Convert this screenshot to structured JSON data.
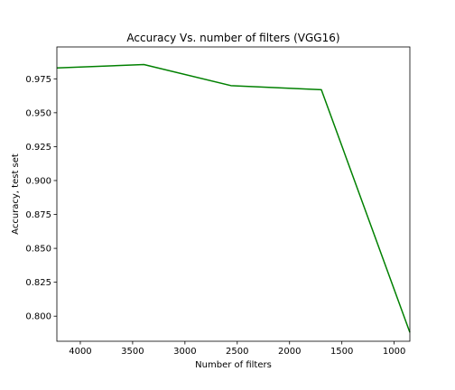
{
  "chart_data": {
    "type": "line",
    "title": "Accuracy Vs. number of filters (VGG16)",
    "xlabel": "Number of filters",
    "ylabel": "Accuracy, test set",
    "xlim": [
      4224,
      850
    ],
    "ylim": [
      0.7815,
      0.9985
    ],
    "x_inverted": true,
    "grid": false,
    "x_ticks": [
      4000,
      3500,
      3000,
      2500,
      2000,
      1500,
      1000
    ],
    "y_ticks": [
      0.8,
      0.825,
      0.85,
      0.875,
      0.9,
      0.925,
      0.95,
      0.975
    ],
    "series": [
      {
        "color": "#008000",
        "x": [
          4224,
          3392,
          2560,
          1696,
          850
        ],
        "y": [
          0.983,
          0.9855,
          0.97,
          0.967,
          0.788
        ]
      }
    ]
  }
}
